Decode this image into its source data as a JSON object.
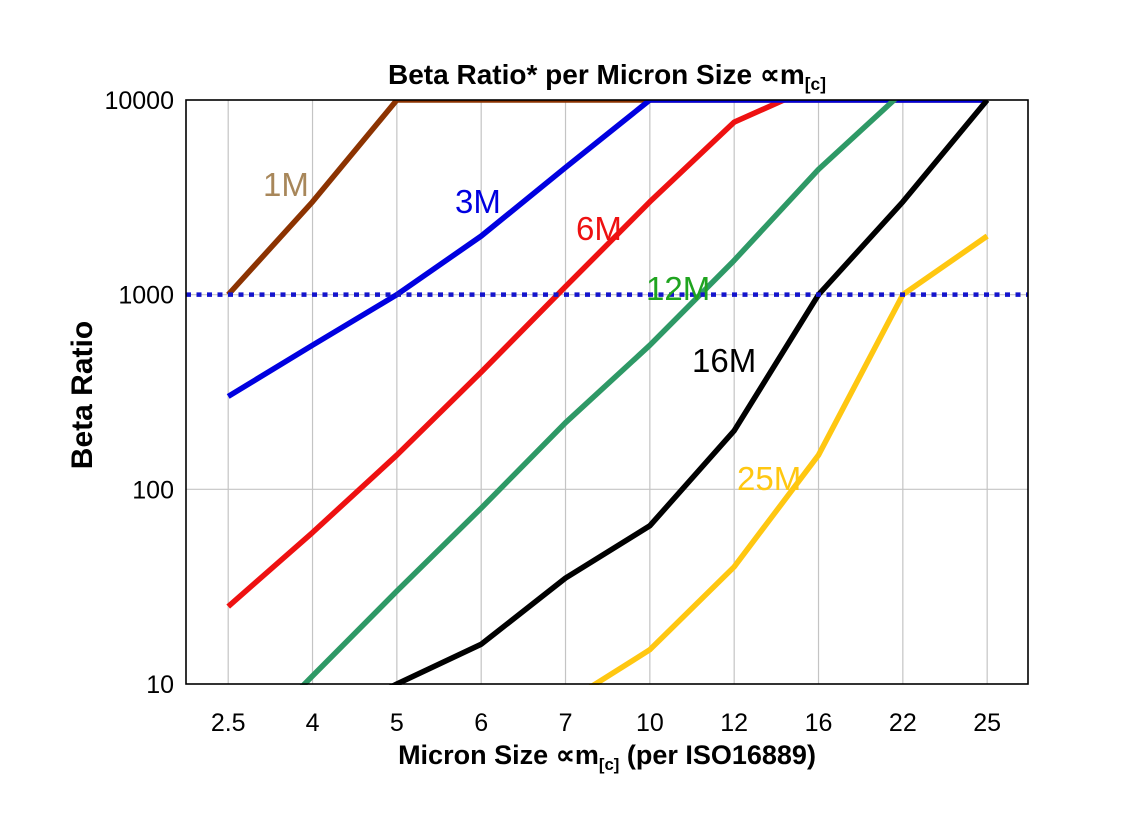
{
  "title": {
    "main": "Beta Ratio* per Micron Size ∝m",
    "subscript": "[c]"
  },
  "x_axis_title": {
    "main": "Micron Size ∝m",
    "subscript": "[c]",
    "suffix": " (per ISO16889)"
  },
  "chart_data": {
    "type": "line",
    "title": "Beta Ratio* per Micron Size ∝m[c]",
    "xlabel": "Micron Size ∝m[c] (per ISO16889)",
    "ylabel": "Beta Ratio",
    "x_categories": [
      "2.5",
      "4",
      "5",
      "6",
      "7",
      "10",
      "12",
      "16",
      "22",
      "25"
    ],
    "y_scale": "log",
    "y_ticks": [
      "10",
      "100",
      "1000",
      "10000"
    ],
    "ylim": [
      10,
      10000
    ],
    "grid": "on",
    "reference_line": {
      "y": 1000,
      "style": "dotted",
      "color": "#1414CC"
    },
    "colors": {
      "grid": "#C4C4C4",
      "frame": "#000000",
      "background": "#FFFFFF"
    },
    "series": [
      {
        "name": "1M",
        "color": "#8C3301",
        "label_color": "#A8875A",
        "values": [
          1000,
          3000,
          10000,
          10000,
          10000,
          10000,
          10000,
          10000,
          10000,
          10000
        ]
      },
      {
        "name": "6M",
        "color": "#EE1111",
        "label_color": "#EE1111",
        "values": [
          25,
          60,
          150,
          400,
          1100,
          3000,
          7700,
          12000,
          12000,
          12000
        ]
      },
      {
        "name": "3M",
        "color": "#0000E0",
        "label_color": "#0000E0",
        "values": [
          300,
          550,
          1000,
          2000,
          4500,
          10000,
          10000,
          10000,
          10000,
          10000
        ]
      },
      {
        "name": "12M",
        "color": "#2E9966",
        "label_color": "#1FA41F",
        "values": [
          4,
          11,
          30,
          80,
          220,
          550,
          1500,
          4400,
          11000,
          11000
        ]
      },
      {
        "name": "16M",
        "color": "#000000",
        "label_color": "#000000",
        "values": [
          null,
          6,
          10,
          16,
          35,
          65,
          200,
          1000,
          3000,
          10000
        ]
      },
      {
        "name": "25M",
        "color": "#FFC711",
        "label_color": "#FFC711",
        "values": [
          null,
          null,
          null,
          null,
          8,
          15,
          40,
          150,
          1000,
          2000
        ]
      }
    ]
  }
}
